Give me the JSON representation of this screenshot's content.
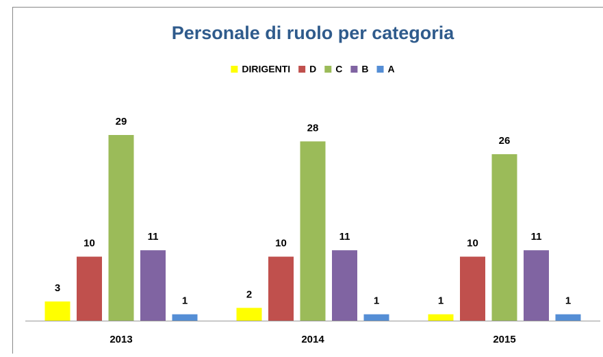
{
  "chart_data": {
    "type": "bar",
    "title": "Personale di ruolo per categoria",
    "categories": [
      "2013",
      "2014",
      "2015"
    ],
    "series": [
      {
        "name": "DIRIGENTI",
        "color": "#ffff00",
        "values": [
          3,
          2,
          1
        ]
      },
      {
        "name": "D",
        "color": "#c0504d",
        "values": [
          10,
          10,
          10
        ]
      },
      {
        "name": "C",
        "color": "#9bbb59",
        "values": [
          29,
          28,
          26
        ]
      },
      {
        "name": "B",
        "color": "#8064a2",
        "values": [
          11,
          11,
          11
        ]
      },
      {
        "name": "A",
        "color": "#558ed5",
        "values": [
          1,
          1,
          1
        ]
      }
    ],
    "legend": "top"
  }
}
